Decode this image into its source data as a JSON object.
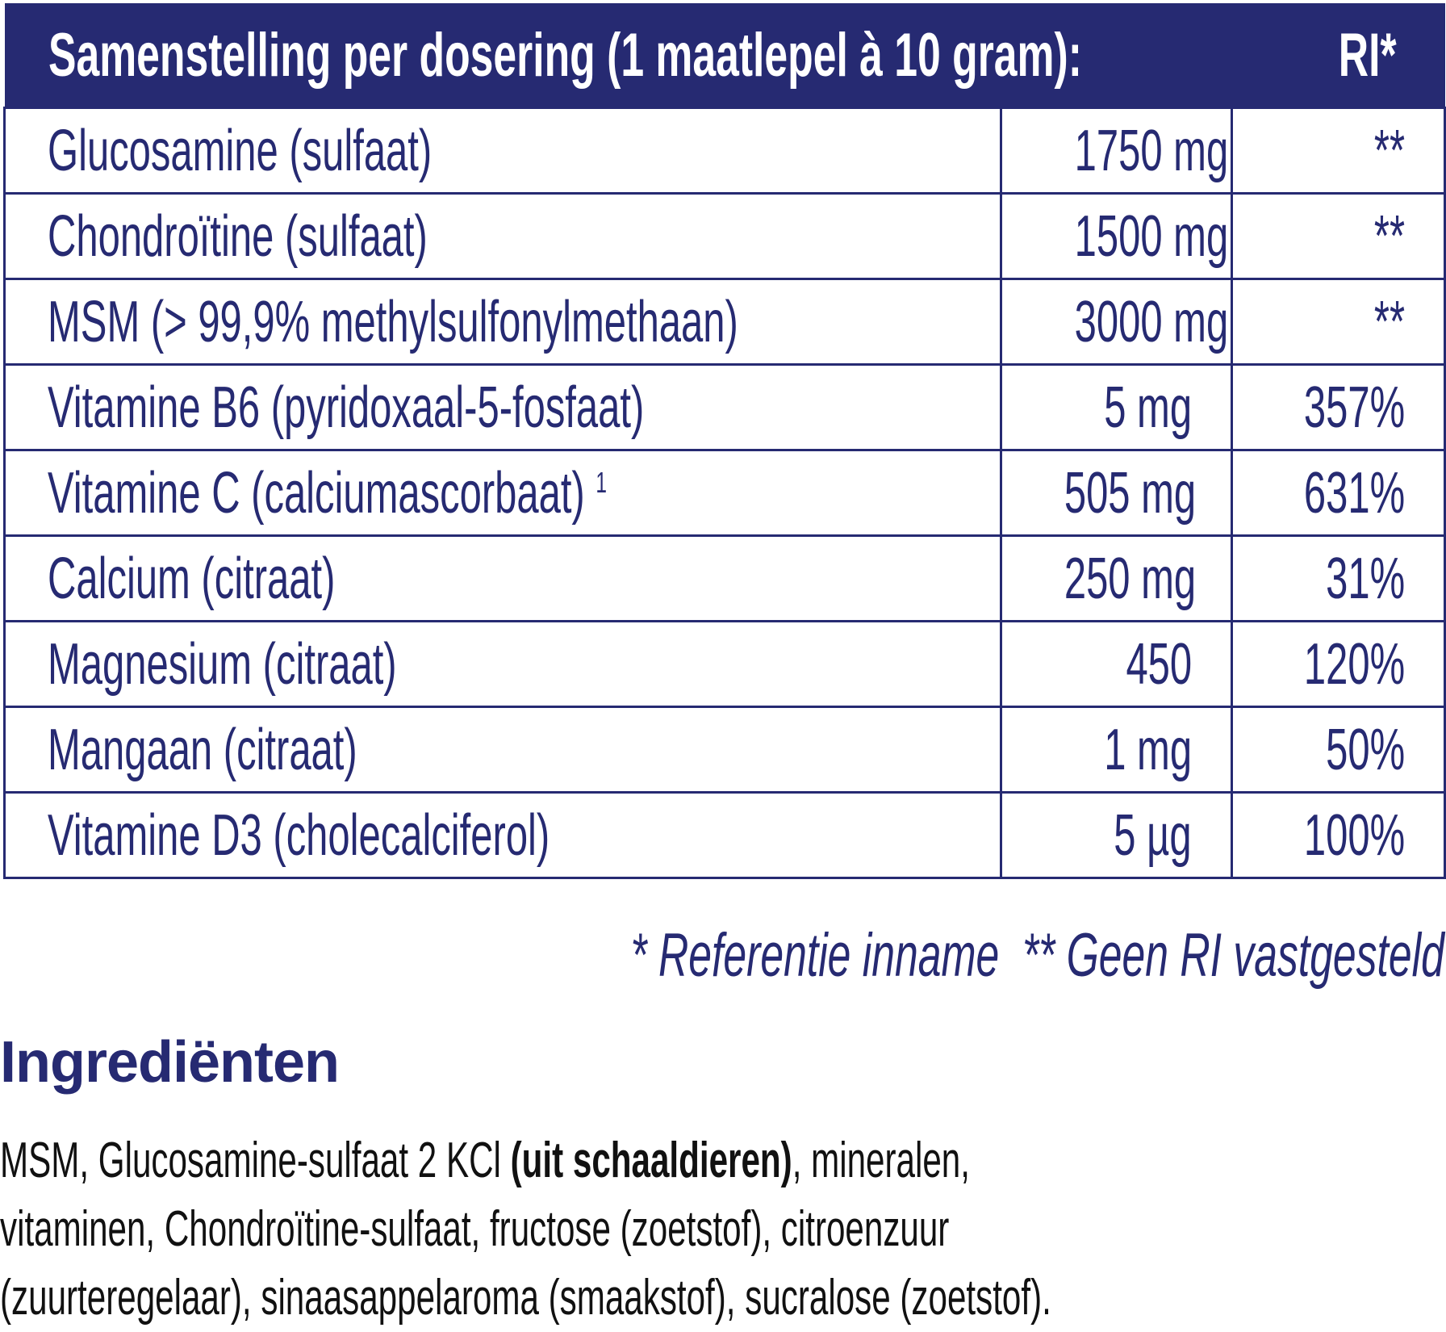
{
  "table": {
    "header": {
      "title": "Samenstelling per dosering (1 maatlepel à 10 gram):",
      "ri": "RI*"
    },
    "rows": [
      {
        "name": "Glucosamine (sulfaat)",
        "amount": "1750 mg",
        "ri": "**"
      },
      {
        "name": "Chondroïtine (sulfaat)",
        "amount": "1500 mg",
        "ri": "**"
      },
      {
        "name": "MSM (> 99,9% methylsulfonylmethaan)",
        "amount": "3000 mg",
        "ri": "**"
      },
      {
        "name": "Vitamine B6 (pyridoxaal-5-fosfaat)",
        "amount": "5 mg",
        "ri": "357%"
      },
      {
        "name": "Vitamine C (calciumascorbaat)",
        "sup": "1",
        "amount": "505 mg",
        "ri": "631%"
      },
      {
        "name": "Calcium (citraat)",
        "amount": "250 mg",
        "ri": "31%"
      },
      {
        "name": "Magnesium (citraat)",
        "amount": "450",
        "ri": "120%"
      },
      {
        "name": "Mangaan (citraat)",
        "amount": "1 mg",
        "ri": "50%"
      },
      {
        "name": "Vitamine D3 (cholecalciferol)",
        "amount": "5 µg",
        "ri": "100%"
      }
    ]
  },
  "footnote": "* Referentie inname  ** Geen RI vastgesteld",
  "ingredients": {
    "heading": "Ingrediënten",
    "line1_a": "MSM, Glucosamine-sulfaat 2 KCl ",
    "line1_bold": "(uit schaaldieren)",
    "line1_b": ", mineralen,",
    "line2": "vitaminen, Chondroïtine-sulfaat, fructose (zoetstof), citroenzuur",
    "line3": "(zuurteregelaar), sinaasappelaroma (smaakstof), sucralose (zoetstof)."
  },
  "colors": {
    "brand": "#262a72"
  }
}
